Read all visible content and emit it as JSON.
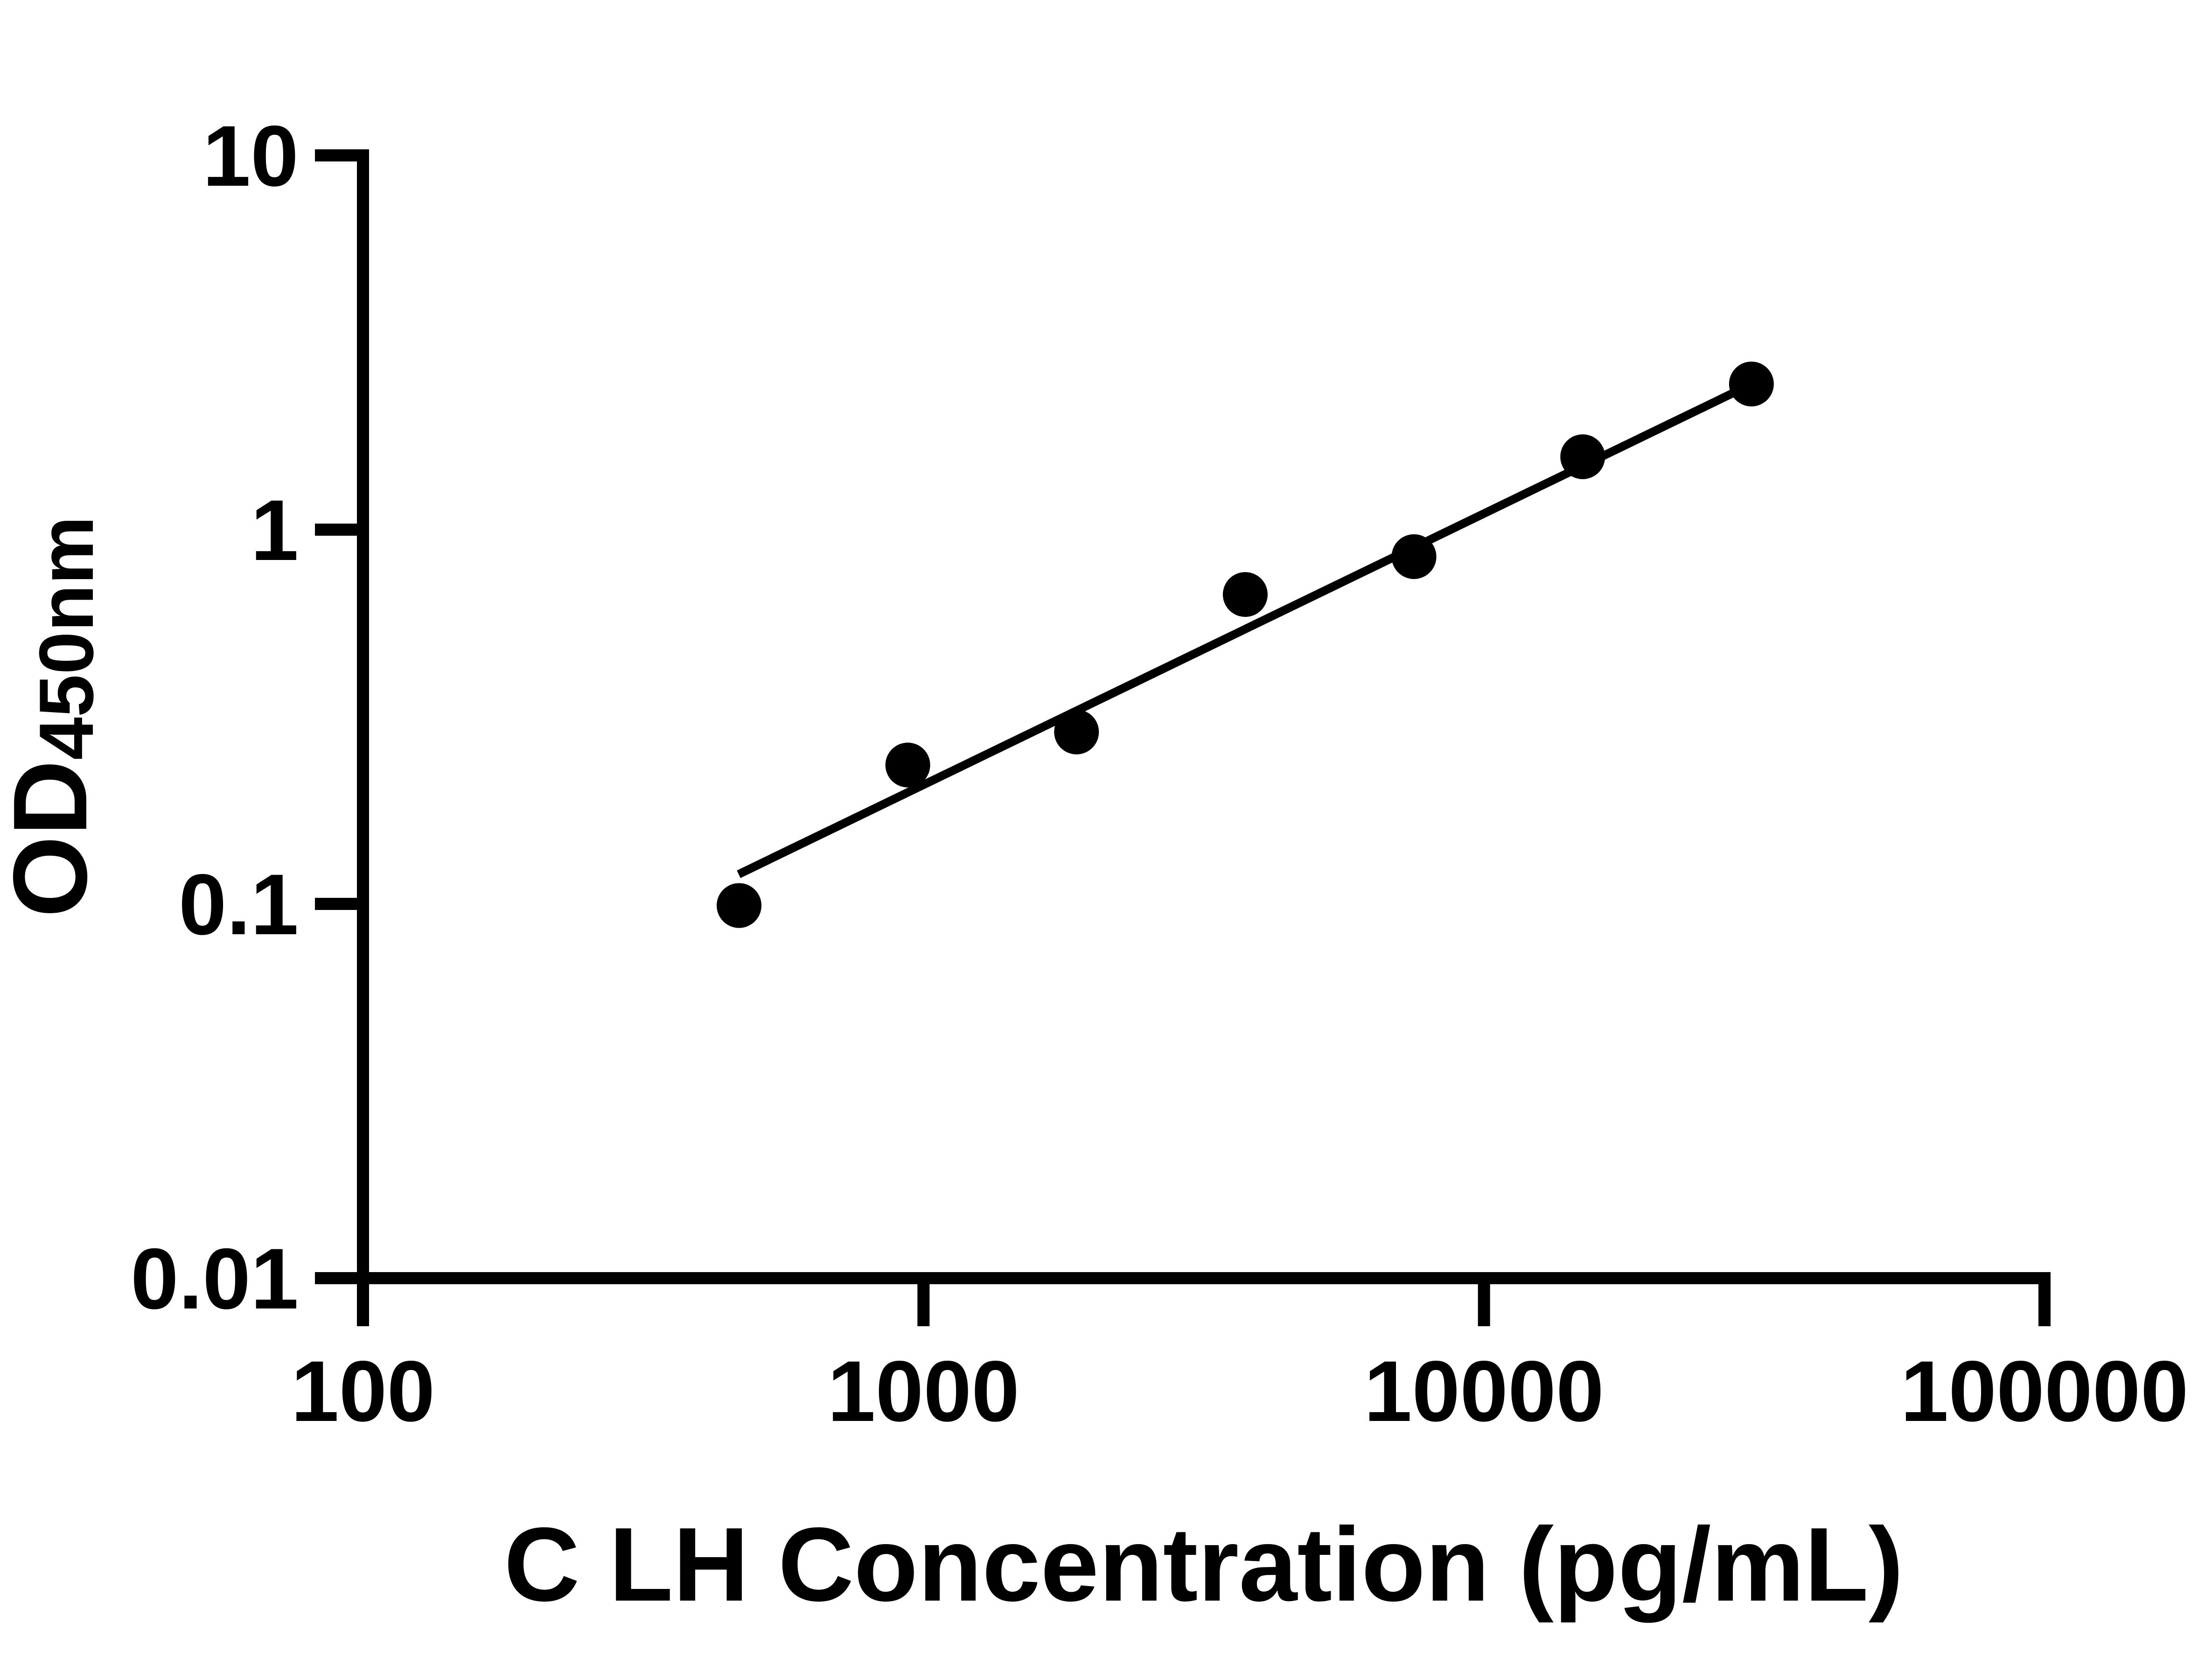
{
  "figure": {
    "background_color": "#ffffff",
    "ink_color": "#000000"
  },
  "chart_data": {
    "type": "scatter",
    "title": "",
    "xlabel": "C LH Concentration (pg/mL)",
    "ylabel_main": "OD",
    "ylabel_sub": "450nm",
    "x_scale": "log10",
    "y_scale": "log10",
    "xlim": [
      100,
      100000
    ],
    "ylim": [
      0.01,
      10
    ],
    "grid": false,
    "legend": null,
    "x_ticks": {
      "values": [
        100,
        1000,
        10000,
        100000
      ],
      "labels": [
        "100",
        "1000",
        "10000",
        "100000"
      ]
    },
    "y_ticks": {
      "values": [
        10,
        1,
        0.1,
        0.01
      ],
      "labels": [
        "10",
        "1",
        "0.1",
        "0.01"
      ]
    },
    "series": [
      {
        "name": "standard-curve-points",
        "marker": "filled-circle",
        "color": "#000000",
        "x": [
          468.75,
          937.5,
          1875,
          3750,
          7500,
          15000,
          30000
        ],
        "y": [
          0.099,
          0.235,
          0.288,
          0.671,
          0.847,
          1.566,
          2.45
        ]
      }
    ],
    "trend_line": {
      "name": "fit-line",
      "color": "#000000",
      "x1": 468,
      "y1": 0.12,
      "x2": 30200,
      "y2": 2.46
    }
  }
}
